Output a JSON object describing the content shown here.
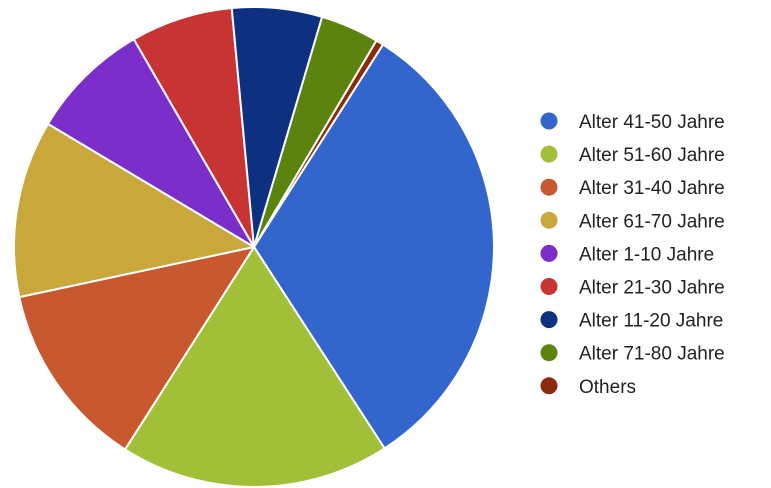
{
  "chart_data": {
    "type": "pie",
    "title": "",
    "legend_position": "right",
    "slice_border_color": "#ffffff",
    "text_color": "#222222",
    "slices": [
      {
        "label": "Alter 41-50 Jahre",
        "value": 31.5,
        "color": "#3366cc"
      },
      {
        "label": "Alter 51-60 Jahre",
        "value": 18.0,
        "color": "#a2c037"
      },
      {
        "label": "Alter 31-40 Jahre",
        "value": 12.5,
        "color": "#c8582e"
      },
      {
        "label": "Alter 61-70 Jahre",
        "value": 11.8,
        "color": "#c9a83b"
      },
      {
        "label": "Alter 1-10 Jahre",
        "value": 8.0,
        "color": "#7b2ec9"
      },
      {
        "label": "Alter 21-30 Jahre",
        "value": 6.8,
        "color": "#c83434"
      },
      {
        "label": "Alter 11-20 Jahre",
        "value": 6.0,
        "color": "#0d3180"
      },
      {
        "label": "Alter 71-80 Jahre",
        "value": 3.9,
        "color": "#5b830d"
      },
      {
        "label": "Others",
        "value": 0.5,
        "color": "#8b2a0c"
      }
    ]
  }
}
